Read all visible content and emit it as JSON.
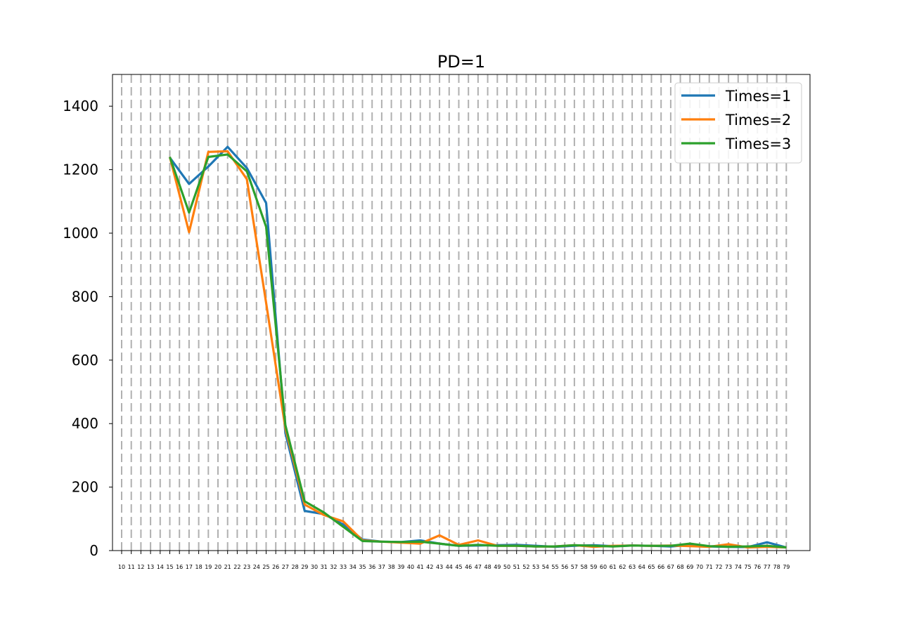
{
  "chart_data": {
    "type": "line",
    "title": "PD=1",
    "xlabel": "",
    "ylabel": "",
    "xlim": [
      10,
      79
    ],
    "ylim": [
      0,
      1500
    ],
    "x_ticks": [
      10,
      11,
      12,
      13,
      14,
      15,
      16,
      17,
      18,
      19,
      20,
      21,
      22,
      23,
      24,
      25,
      26,
      27,
      28,
      29,
      30,
      31,
      32,
      33,
      34,
      35,
      36,
      37,
      38,
      39,
      40,
      41,
      42,
      43,
      44,
      45,
      46,
      47,
      48,
      49,
      50,
      51,
      52,
      53,
      54,
      55,
      56,
      57,
      58,
      59,
      60,
      61,
      62,
      63,
      64,
      65,
      66,
      67,
      68,
      69,
      70,
      71,
      72,
      73,
      74,
      75,
      76,
      77,
      78,
      79
    ],
    "y_ticks": [
      0,
      200,
      400,
      600,
      800,
      1000,
      1200,
      1400
    ],
    "grid": true,
    "legend_position": "top-right",
    "x": [
      15,
      17,
      19,
      21,
      23,
      25,
      27,
      29,
      31,
      33,
      35,
      37,
      39,
      41,
      43,
      45,
      47,
      49,
      51,
      53,
      55,
      57,
      59,
      61,
      63,
      65,
      67,
      69,
      71,
      73,
      75,
      77,
      79
    ],
    "series": [
      {
        "name": "Times=1",
        "color": "#1f77b4",
        "values": [
          1238,
          1155,
          1210,
          1272,
          1205,
          1095,
          370,
          125,
          115,
          82,
          35,
          28,
          27,
          32,
          22,
          15,
          16,
          17,
          18,
          15,
          12,
          15,
          17,
          14,
          16,
          15,
          13,
          18,
          13,
          12,
          11,
          26,
          10
        ]
      },
      {
        "name": "Times=2",
        "color": "#ff7f0e",
        "values": [
          1240,
          1003,
          1256,
          1258,
          1170,
          780,
          385,
          145,
          112,
          92,
          32,
          28,
          25,
          22,
          48,
          18,
          32,
          15,
          15,
          13,
          13,
          17,
          12,
          15,
          16,
          15,
          16,
          14,
          12,
          20,
          10,
          12,
          10
        ]
      },
      {
        "name": "Times=3",
        "color": "#2ca02c",
        "values": [
          1240,
          1065,
          1240,
          1248,
          1195,
          1020,
          395,
          155,
          120,
          75,
          30,
          28,
          27,
          28,
          22,
          15,
          18,
          15,
          15,
          13,
          13,
          17,
          15,
          13,
          16,
          15,
          15,
          22,
          14,
          12,
          13,
          15,
          10
        ]
      }
    ]
  }
}
